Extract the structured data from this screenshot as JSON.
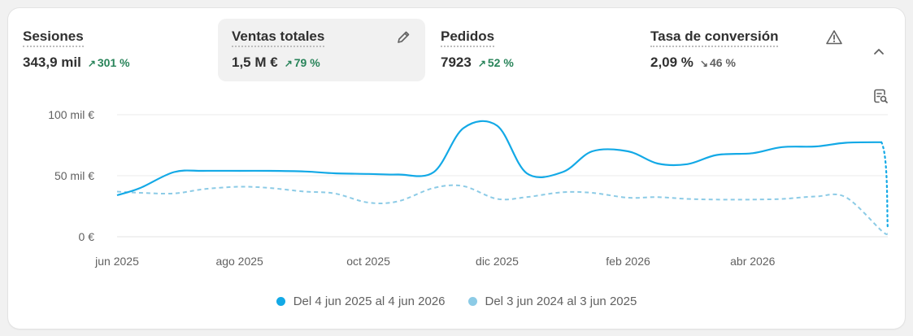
{
  "metrics": [
    {
      "label": "Sesiones",
      "value": "343,9 mil",
      "change": "301 %",
      "direction": "up"
    },
    {
      "label": "Ventas totales",
      "value": "1,5 M €",
      "change": "79 %",
      "direction": "up",
      "active": true,
      "icon": "pencil-icon"
    },
    {
      "label": "Pedidos",
      "value": "7923",
      "change": "52 %",
      "direction": "up"
    },
    {
      "label": "Tasa de conversión",
      "value": "2,09 %",
      "change": "46 %",
      "direction": "down",
      "icon": "warning-icon"
    }
  ],
  "icons": {
    "collapse": "chevron-up-icon",
    "analyze": "chart-search-icon"
  },
  "colors": {
    "current": "#13a9e6",
    "previous": "#8ccbe6",
    "up": "#29845a",
    "down": "#616161"
  },
  "chart_data": {
    "type": "line",
    "x_tick_labels": [
      "jun 2025",
      "ago 2025",
      "oct 2025",
      "dic 2025",
      "feb 2026",
      "abr 2026"
    ],
    "y_tick_labels": [
      "100 mil €",
      "50 mil €",
      "0 €"
    ],
    "ylim": [
      0,
      100000
    ],
    "grid": true,
    "legend_position": "bottom",
    "series": [
      {
        "name": "Del 4 jun 2025 al 4 jun 2026",
        "style": "solid-then-dotted",
        "x": [
          "2025-06-04",
          "2025-06-15",
          "2025-07-01",
          "2025-07-15",
          "2025-08-01",
          "2025-08-15",
          "2025-09-01",
          "2025-09-15",
          "2025-10-01",
          "2025-10-15",
          "2025-11-01",
          "2025-11-15",
          "2025-12-01",
          "2025-12-15",
          "2026-01-01",
          "2026-01-15",
          "2026-02-01",
          "2026-02-15",
          "2026-03-01",
          "2026-03-15",
          "2026-04-01",
          "2026-04-15",
          "2026-05-01",
          "2026-05-15",
          "2026-06-01",
          "2026-06-04"
        ],
        "values": [
          34000,
          40000,
          53000,
          54000,
          54000,
          54000,
          53500,
          52000,
          51500,
          51000,
          53000,
          89000,
          91000,
          52000,
          53000,
          70000,
          70000,
          60000,
          59500,
          67000,
          68500,
          73500,
          74000,
          77000,
          77500,
          6000
        ]
      },
      {
        "name": "Del 3 jun 2024 al 3 jun 2025",
        "style": "dashed",
        "x": [
          "2025-06-04",
          "2025-06-15",
          "2025-07-01",
          "2025-07-15",
          "2025-08-01",
          "2025-08-15",
          "2025-09-01",
          "2025-09-15",
          "2025-10-01",
          "2025-10-15",
          "2025-11-01",
          "2025-11-15",
          "2025-12-01",
          "2025-12-15",
          "2026-01-01",
          "2026-01-15",
          "2026-02-01",
          "2026-02-15",
          "2026-03-01",
          "2026-03-15",
          "2026-04-01",
          "2026-04-15",
          "2026-05-01",
          "2026-05-15",
          "2026-06-01",
          "2026-06-04"
        ],
        "values": [
          37000,
          36000,
          35500,
          39000,
          41000,
          40000,
          37000,
          35500,
          28000,
          29000,
          40000,
          41500,
          31000,
          32500,
          36500,
          36000,
          32000,
          32500,
          31000,
          30500,
          30500,
          31000,
          33000,
          32500,
          5000,
          2500
        ]
      }
    ]
  }
}
